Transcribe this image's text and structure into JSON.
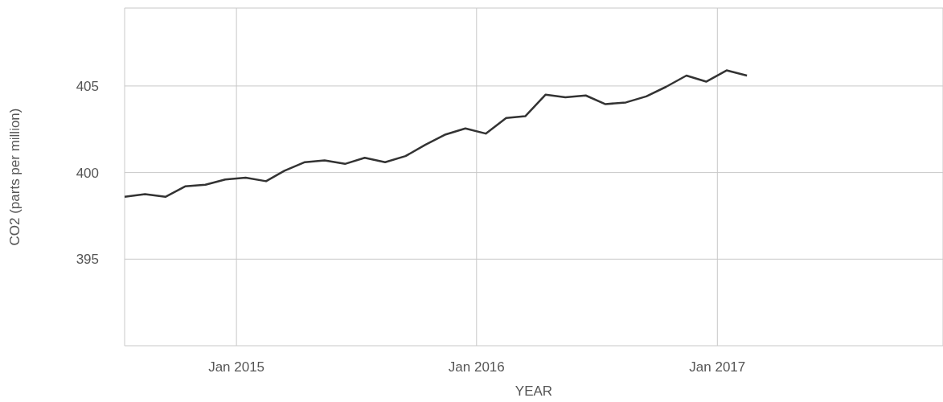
{
  "chart_data": {
    "type": "line",
    "xlabel": "YEAR",
    "ylabel": "CO2 (parts per million)",
    "x": [
      "2014-07-15",
      "2014-08-15",
      "2014-09-15",
      "2014-10-15",
      "2014-11-15",
      "2014-12-15",
      "2015-01-15",
      "2015-02-15",
      "2015-03-15",
      "2015-04-15",
      "2015-05-15",
      "2015-06-15",
      "2015-07-15",
      "2015-08-15",
      "2015-09-15",
      "2015-10-15",
      "2015-11-15",
      "2015-12-15",
      "2016-01-15",
      "2016-02-15",
      "2016-03-15",
      "2016-04-15",
      "2016-05-15",
      "2016-06-15",
      "2016-07-15",
      "2016-08-15",
      "2016-09-15",
      "2016-10-15",
      "2016-11-15",
      "2016-12-15",
      "2017-01-15",
      "2017-02-15"
    ],
    "series": [
      {
        "color": "#333333",
        "values": [
          398.6,
          398.75,
          398.6,
          399.2,
          399.3,
          399.6,
          399.7,
          399.5,
          400.1,
          400.6,
          400.7,
          400.5,
          400.85,
          400.6,
          400.95,
          401.6,
          402.2,
          402.55,
          402.25,
          403.15,
          403.25,
          404.5,
          404.35,
          404.45,
          403.95,
          404.05,
          404.4,
          404.95,
          405.6,
          405.25,
          405.9,
          405.6
        ]
      }
    ],
    "xlim": [
      "2014-07-15",
      "2017-12-10"
    ],
    "xticks": [
      {
        "value": "2015-01",
        "label": "Jan 2015"
      },
      {
        "value": "2016-01",
        "label": "Jan 2016"
      },
      {
        "value": "2017-01",
        "label": "Jan 2017"
      }
    ],
    "ylim": [
      390,
      409.5
    ],
    "yticks": [
      395,
      400,
      405
    ],
    "grid": true,
    "legend": false,
    "marker": "none",
    "line_style": "solid"
  }
}
